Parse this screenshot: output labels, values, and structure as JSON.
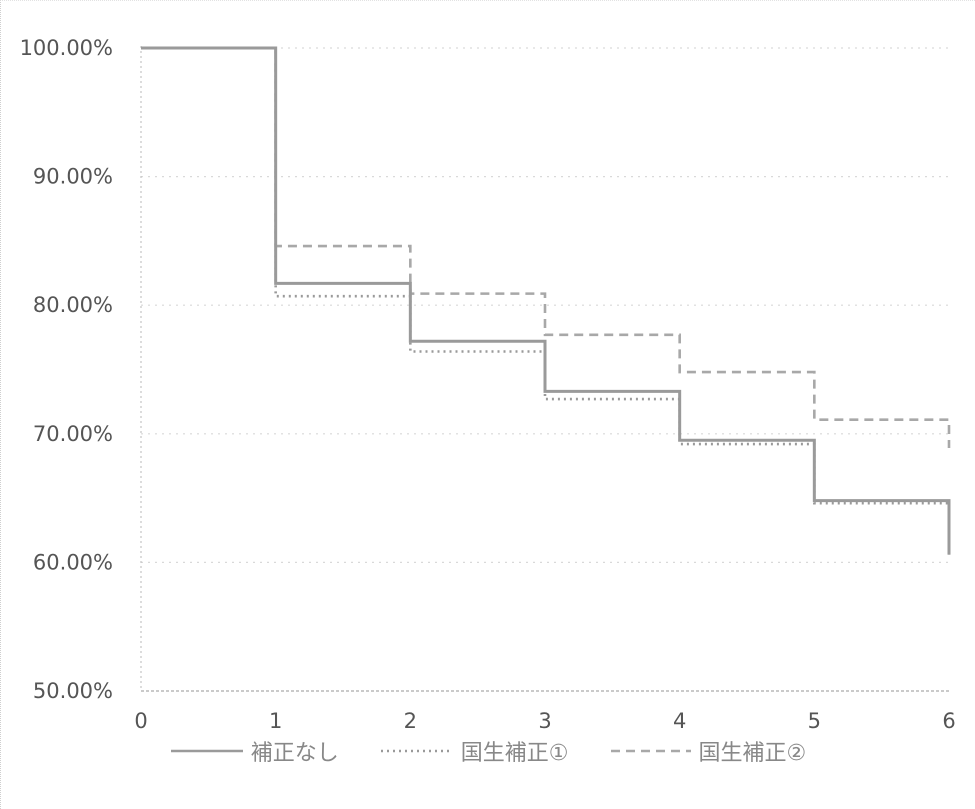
{
  "chart_data": {
    "type": "line",
    "step": true,
    "x": [
      0,
      1,
      2,
      3,
      4,
      5,
      6
    ],
    "xlim": [
      0,
      6
    ],
    "ylim": [
      50,
      100
    ],
    "yticks": [
      50,
      60,
      70,
      80,
      90,
      100
    ],
    "ytick_labels": [
      "50.00%",
      "60.00%",
      "70.00%",
      "80.00%",
      "90.00%",
      "100.00%"
    ],
    "xtick_labels": [
      "0",
      "1",
      "2",
      "3",
      "4",
      "5",
      "6"
    ],
    "grid": true,
    "legend_position": "bottom",
    "series": [
      {
        "name": "補正なし",
        "style": "solid",
        "color": "#9a9a9a",
        "values": [
          100,
          81.7,
          77.2,
          73.3,
          69.5,
          64.8,
          60.6
        ]
      },
      {
        "name": "国生補正①",
        "style": "dotted",
        "color": "#9a9a9a",
        "values": [
          100,
          80.7,
          76.4,
          72.7,
          69.2,
          64.6,
          60.6
        ]
      },
      {
        "name": "国生補正②",
        "style": "dashed",
        "color": "#a8a8a8",
        "values": [
          100,
          84.6,
          80.9,
          77.7,
          74.8,
          71.1,
          68.9
        ]
      }
    ]
  }
}
